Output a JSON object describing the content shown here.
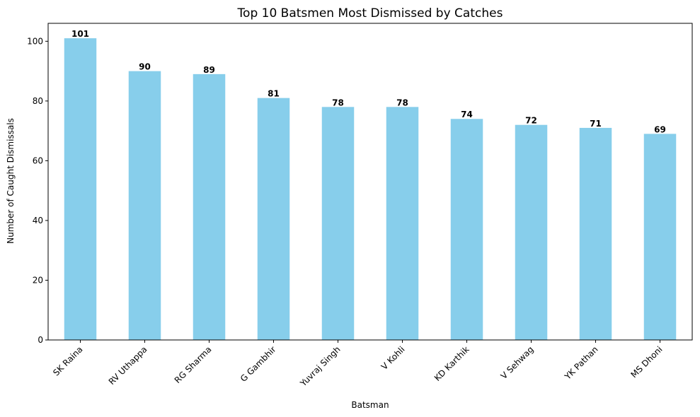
{
  "chart_data": {
    "type": "bar",
    "title": "Top 10 Batsmen Most Dismissed by Catches",
    "xlabel": "Batsman",
    "ylabel": "Number of Caught Dismissals",
    "categories": [
      "SK Raina",
      "RV Uthappa",
      "RG Sharma",
      "G Gambhir",
      "Yuvraj Singh",
      "V Kohli",
      "KD Karthik",
      "V Sehwag",
      "YK Pathan",
      "MS Dhoni"
    ],
    "values": [
      101,
      90,
      89,
      81,
      78,
      78,
      74,
      72,
      71,
      69
    ],
    "ylim": [
      0,
      106
    ],
    "yticks": [
      0,
      20,
      40,
      60,
      80,
      100
    ],
    "bar_color": "#87CEEB",
    "grid": false,
    "legend": "none"
  }
}
